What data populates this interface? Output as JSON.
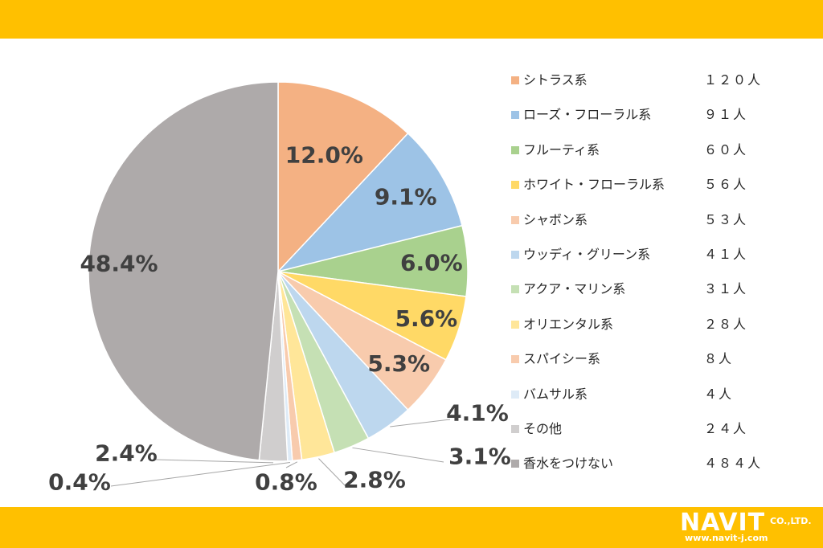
{
  "chart_data": {
    "type": "pie",
    "start": "top",
    "direction": "clockwise",
    "slices": [
      {
        "label": "シトラス系",
        "count": "１２０人",
        "percent": 12.0,
        "percent_label": "12.0%",
        "color": "#F4B183"
      },
      {
        "label": "ローズ・フローラル系",
        "count": "９１人",
        "percent": 9.1,
        "percent_label": "9.1%",
        "color": "#9DC3E6"
      },
      {
        "label": "フルーティ系",
        "count": "６０人",
        "percent": 6.0,
        "percent_label": "6.0%",
        "color": "#A9D18E"
      },
      {
        "label": "ホワイト・フローラル系",
        "count": "５６人",
        "percent": 5.6,
        "percent_label": "5.6%",
        "color": "#FFD966"
      },
      {
        "label": "シャボン系",
        "count": "５３人",
        "percent": 5.3,
        "percent_label": "5.3%",
        "color": "#F8CBAD"
      },
      {
        "label": "ウッディ・グリーン系",
        "count": "４１人",
        "percent": 4.1,
        "percent_label": "4.1%",
        "color": "#BDD7EE"
      },
      {
        "label": "アクア・マリン系",
        "count": "３１人",
        "percent": 3.1,
        "percent_label": "3.1%",
        "color": "#C5E0B4"
      },
      {
        "label": "オリエンタル系",
        "count": "２８人",
        "percent": 2.8,
        "percent_label": "2.8%",
        "color": "#FFE699"
      },
      {
        "label": "スパイシー系",
        "count": "８人",
        "percent": 0.8,
        "percent_label": "0.8%",
        "color": "#F8CBAD"
      },
      {
        "label": "バムサル系",
        "count": "４人",
        "percent": 0.4,
        "percent_label": "0.4%",
        "color": "#DEEBF7"
      },
      {
        "label": "その他",
        "count": "２４人",
        "percent": 2.4,
        "percent_label": "2.4%",
        "color": "#D0CECE"
      },
      {
        "label": "香水をつけない",
        "count": "４８４人",
        "percent": 48.4,
        "percent_label": "48.4%",
        "color": "#AEAAAA"
      }
    ]
  },
  "logo": {
    "brand": "NAVIT",
    "company": "CO.,LTD.",
    "url": "www.navit-j.com"
  },
  "colors": {
    "band": "#FFC000",
    "label_text": "#404040"
  }
}
